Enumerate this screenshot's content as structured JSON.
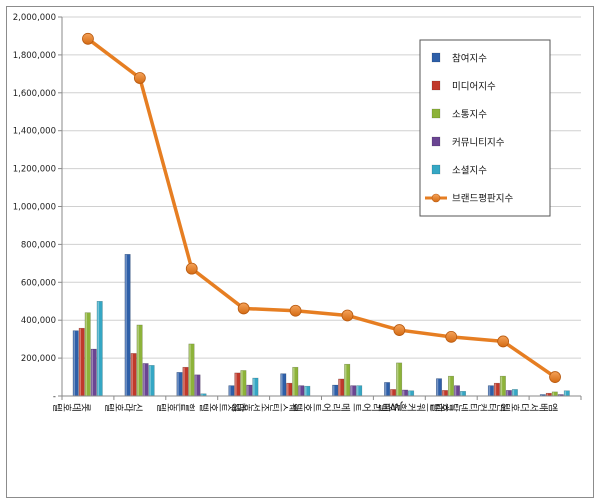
{
  "chart_data": {
    "type": "bar",
    "categories": [
      "롯데호텔",
      "신라호텔",
      "힐튼호텔",
      "하얏트호텔",
      "웨스틴조선호텔",
      "메리어트호텔",
      "JW메리어트",
      "그랜드워커힐호텔",
      "인터컨티넨탈호텔",
      "엠배서더호텔"
    ],
    "ylim": [
      0,
      2000000
    ],
    "yticks": [
      "-",
      "200,000",
      "400,000",
      "600,000",
      "800,000",
      "1,000,000",
      "1,200,000",
      "1,400,000",
      "1,600,000",
      "1,800,000",
      "2,000,000"
    ],
    "grid": true,
    "legend_position": "top-right",
    "series": [
      {
        "name": "참여지수",
        "kind": "bar",
        "color": "#2e5fa8",
        "values": [
          345000,
          748000,
          125000,
          55000,
          118000,
          58000,
          72000,
          92000,
          55000,
          8000
        ]
      },
      {
        "name": "미디어지수",
        "kind": "bar",
        "color": "#c0392b",
        "values": [
          358000,
          225000,
          152000,
          122000,
          68000,
          90000,
          35000,
          30000,
          68000,
          15000
        ]
      },
      {
        "name": "소통지수",
        "kind": "bar",
        "color": "#8db33a",
        "values": [
          440000,
          375000,
          275000,
          135000,
          152000,
          168000,
          175000,
          105000,
          105000,
          22000
        ]
      },
      {
        "name": "커뮤니티지수",
        "kind": "bar",
        "color": "#6a4592",
        "values": [
          248000,
          172000,
          112000,
          58000,
          55000,
          55000,
          32000,
          55000,
          30000,
          8000
        ]
      },
      {
        "name": "소셜지수",
        "kind": "bar",
        "color": "#35a7c4",
        "values": [
          500000,
          162000,
          12000,
          95000,
          52000,
          55000,
          28000,
          25000,
          35000,
          28000
        ]
      },
      {
        "name": "브랜드평판지수",
        "kind": "line",
        "color": "#e67e22",
        "values": [
          1885000,
          1678000,
          672000,
          462000,
          450000,
          425000,
          348000,
          312000,
          288000,
          100000
        ]
      }
    ]
  }
}
